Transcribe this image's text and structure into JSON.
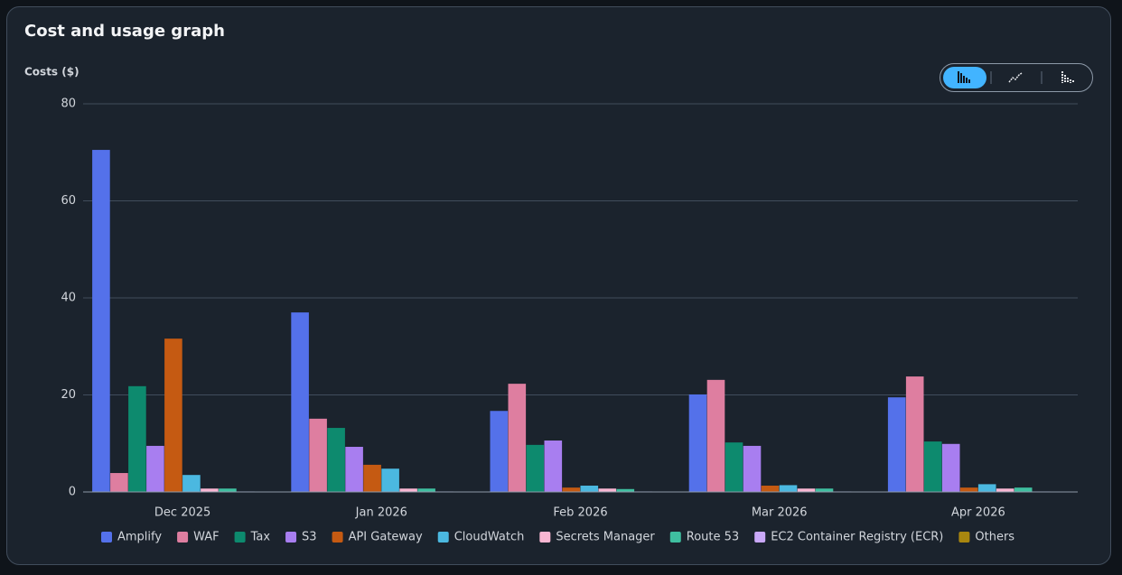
{
  "chart_data": {
    "type": "bar",
    "title": "Cost and usage graph",
    "y_label": "Costs ($)",
    "categories": [
      "Dec 2025",
      "Jan 2026",
      "Feb 2026",
      "Mar 2026",
      "Apr 2026"
    ],
    "series": [
      {
        "name": "Amplify",
        "color": "#5471ea",
        "values": [
          70.5,
          37.0,
          16.7,
          20.1,
          19.5
        ]
      },
      {
        "name": "WAF",
        "color": "#de7ea0",
        "values": [
          3.9,
          15.1,
          22.3,
          23.1,
          23.8
        ]
      },
      {
        "name": "Tax",
        "color": "#0d8a6e",
        "values": [
          21.8,
          13.2,
          9.7,
          10.2,
          10.4
        ]
      },
      {
        "name": "S3",
        "color": "#a87ef0",
        "values": [
          9.5,
          9.3,
          10.6,
          9.5,
          9.9
        ]
      },
      {
        "name": "API Gateway",
        "color": "#c55a12",
        "values": [
          31.6,
          5.6,
          0.9,
          1.3,
          0.9
        ]
      },
      {
        "name": "CloudWatch",
        "color": "#4bb8e0",
        "values": [
          3.5,
          4.8,
          1.3,
          1.4,
          1.6
        ]
      },
      {
        "name": "Secrets Manager",
        "color": "#f9b6d2",
        "values": [
          0.7,
          0.7,
          0.7,
          0.7,
          0.7
        ]
      },
      {
        "name": "Route 53",
        "color": "#3fbfa0",
        "values": [
          0.7,
          0.7,
          0.6,
          0.7,
          0.9
        ]
      },
      {
        "name": "EC2 Container Registry (ECR)",
        "color": "#c9a8f8",
        "values": [
          0.1,
          0.1,
          0.1,
          0.1,
          0.1
        ]
      },
      {
        "name": "Others",
        "color": "#a8860f",
        "values": [
          0.05,
          0.05,
          0.05,
          0.05,
          0.05
        ]
      }
    ],
    "ylim": [
      0,
      80
    ],
    "yticks": [
      0,
      20,
      40,
      60,
      80
    ],
    "grid": true,
    "legend": "bottom"
  }
}
